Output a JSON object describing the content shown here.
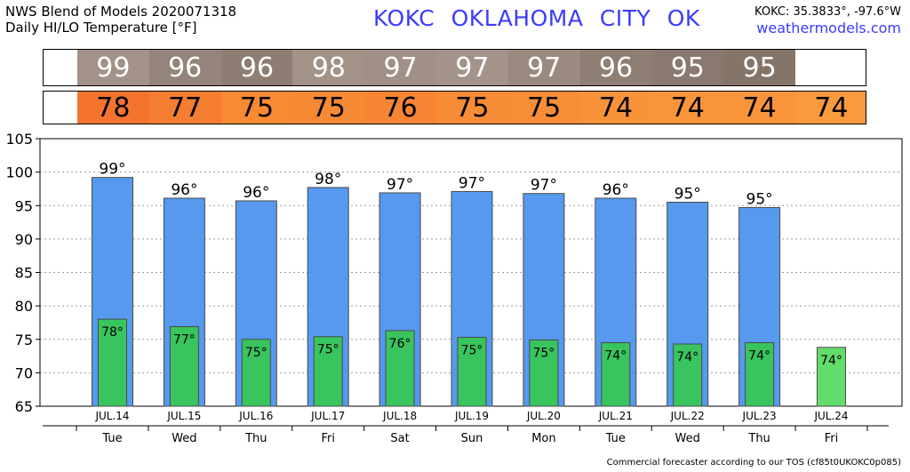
{
  "header": {
    "title_line1": "NWS Blend of Models 2020071318",
    "title_line2": "Daily HI/LO Temperature [°F]",
    "station": "KOKC   OKLAHOMA CITY   OK",
    "coords": "KOKC: 35.3833°, -97.6°W",
    "site": "weathermodels.com"
  },
  "hi_strip": {
    "values": [
      "99",
      "96",
      "96",
      "98",
      "97",
      "97",
      "97",
      "96",
      "95",
      "95"
    ],
    "colors": [
      "#a39289",
      "#94847b",
      "#8e7d73",
      "#a29288",
      "#a09087",
      "#a3938a",
      "#9b8a80",
      "#8f7e74",
      "#897970",
      "#857569"
    ]
  },
  "lo_strip": {
    "values": [
      "78",
      "77",
      "75",
      "75",
      "76",
      "75",
      "75",
      "74",
      "74",
      "74",
      "74"
    ],
    "colors": [
      "#f4742f",
      "#f57d32",
      "#f78a32",
      "#f68a34",
      "#f78535",
      "#f78c36",
      "#f88d37",
      "#f9933a",
      "#f9943a",
      "#f9943b",
      "#fa9a3e"
    ]
  },
  "chart_data": {
    "type": "bar",
    "categories": [
      "JUL.14",
      "JUL.15",
      "JUL.16",
      "JUL.17",
      "JUL.18",
      "JUL.19",
      "JUL.20",
      "JUL.21",
      "JUL.22",
      "JUL.23",
      "JUL.24"
    ],
    "weekdays": [
      "Tue",
      "Wed",
      "Thu",
      "Fri",
      "Sat",
      "Sun",
      "Mon",
      "Tue",
      "Wed",
      "Thu",
      "Fri"
    ],
    "series": [
      {
        "values": [
          99.2,
          96.1,
          95.7,
          97.7,
          96.9,
          97.1,
          96.8,
          96.1,
          95.5,
          94.7,
          null
        ],
        "labels": [
          "99°",
          "96°",
          "96°",
          "98°",
          "97°",
          "97°",
          "97°",
          "96°",
          "95°",
          "95°",
          ""
        ]
      },
      {
        "values": [
          78.0,
          76.9,
          75.0,
          75.4,
          76.3,
          75.3,
          74.9,
          74.5,
          74.3,
          74.5,
          73.8
        ],
        "labels": [
          "78°",
          "77°",
          "75°",
          "75°",
          "76°",
          "75°",
          "75°",
          "74°",
          "74°",
          "74°",
          "74°"
        ]
      }
    ],
    "ylim": [
      65,
      105
    ],
    "yticks": [
      65,
      70,
      75,
      80,
      85,
      90,
      95,
      100,
      105
    ],
    "grid": true,
    "colors": {
      "high": "#5699ee",
      "low": "#39c45e",
      "low_partial": "#62dc6a"
    }
  },
  "footer": "Commercial forecaster according to our TOS (cf85t0UKOKC0p085)"
}
